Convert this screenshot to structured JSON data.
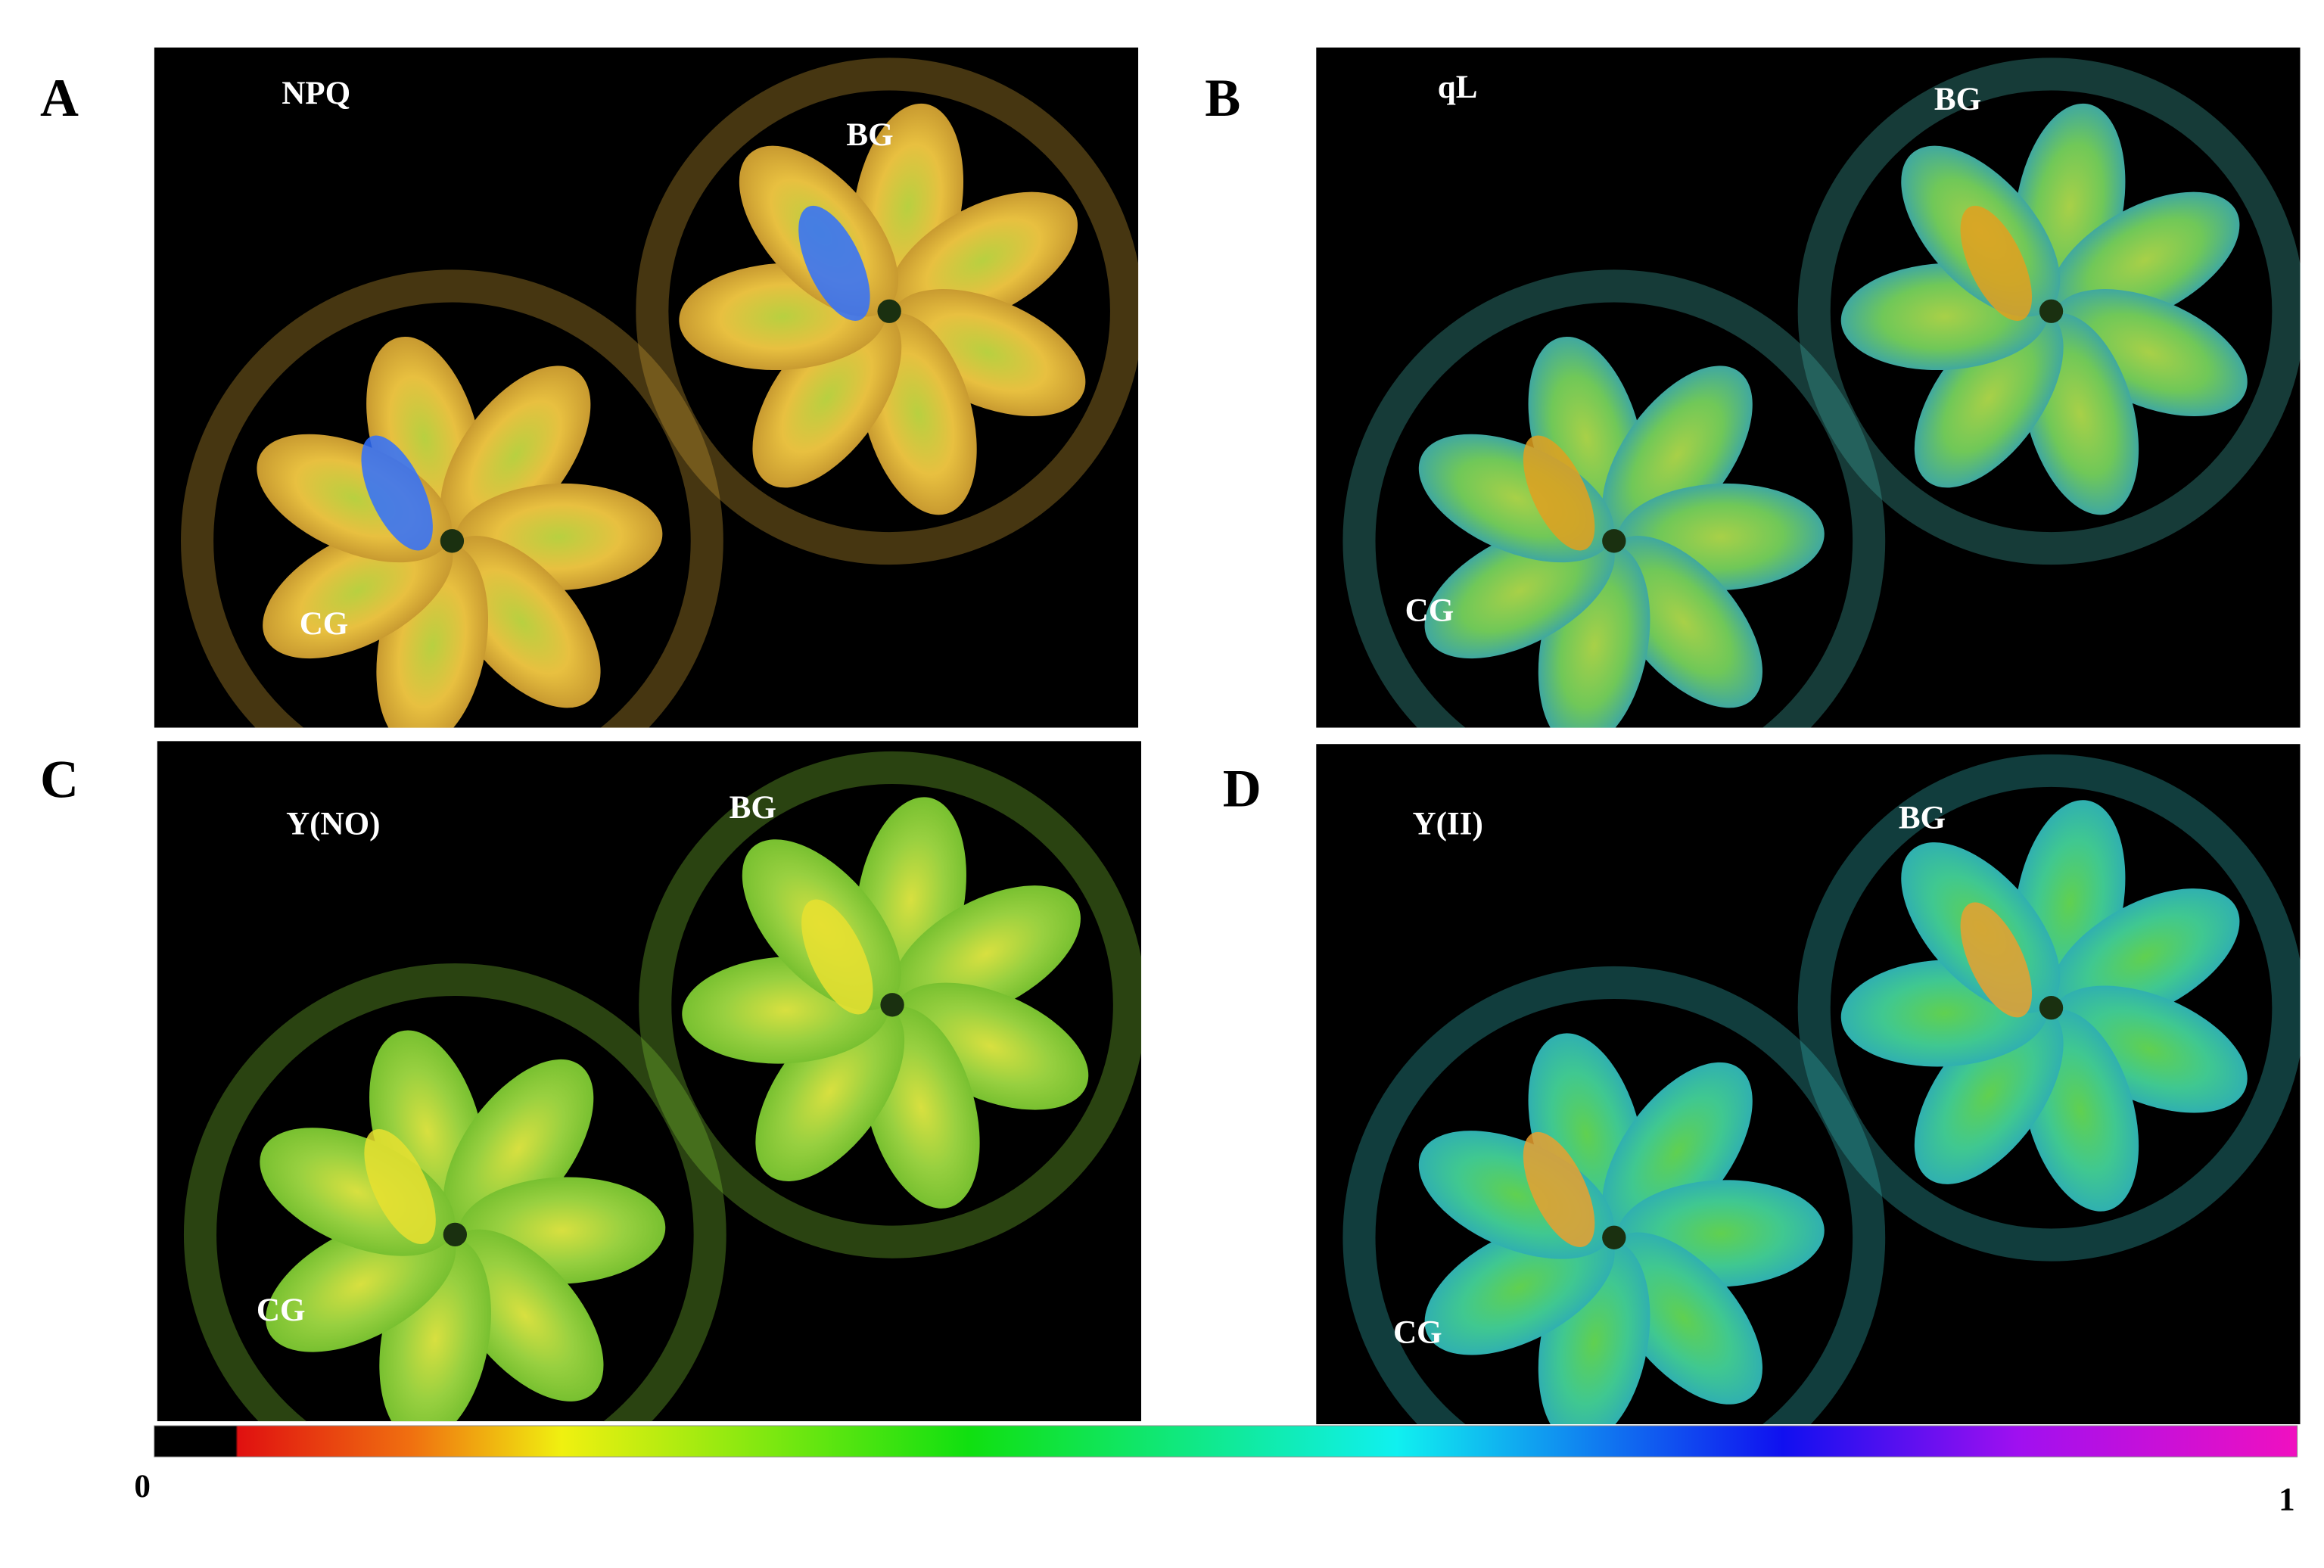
{
  "panels": [
    {
      "letter": "A",
      "parameter": "NPQ",
      "plants": [
        "BG",
        "CG"
      ]
    },
    {
      "letter": "B",
      "parameter": "qL",
      "plants": [
        "BG",
        "CG"
      ]
    },
    {
      "letter": "C",
      "parameter": "Y(NO)",
      "plants": [
        "BG",
        "CG"
      ]
    },
    {
      "letter": "D",
      "parameter": "Y(II)",
      "plants": [
        "BG",
        "CG"
      ]
    }
  ],
  "colorbar": {
    "min": 0,
    "max": 1
  }
}
